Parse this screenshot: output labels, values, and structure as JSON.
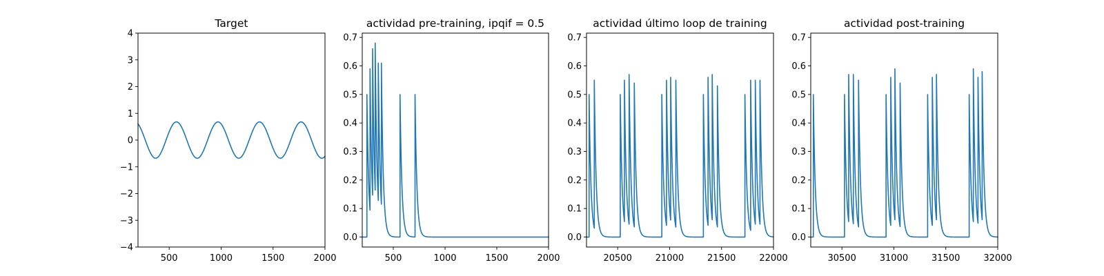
{
  "figure": {
    "background": "#ffffff",
    "line_color": "#1f77b4"
  },
  "chart_data": [
    {
      "type": "line",
      "title": "Target",
      "xlabel": "",
      "ylabel": "",
      "xlim": [
        200,
        2000
      ],
      "ylim": [
        -4,
        4
      ],
      "xticks": [
        500,
        1000,
        1500,
        2000
      ],
      "xtick_labels": [
        "500",
        "1000",
        "1500",
        "2000"
      ],
      "yticks": [
        -4,
        -3,
        -2,
        -1,
        0,
        1,
        2,
        3,
        4
      ],
      "ytick_labels": [
        "−4",
        "−3",
        "−2",
        "−1",
        "0",
        "1",
        "2",
        "3",
        "4"
      ],
      "series": [
        {
          "name": "target",
          "kind": "sine",
          "amplitude": 0.68,
          "period": 400,
          "peak_at": 570,
          "x_range": [
            200,
            2000
          ]
        }
      ]
    },
    {
      "type": "line",
      "title": "actividad pre-training, ipqif = 0.5",
      "xlabel": "",
      "ylabel": "",
      "xlim": [
        200,
        2000
      ],
      "ylim": [
        -0.035,
        0.715
      ],
      "xticks": [
        500,
        1000,
        1500,
        2000
      ],
      "xtick_labels": [
        "500",
        "1000",
        "1500",
        "2000"
      ],
      "yticks": [
        0,
        0.1,
        0.2,
        0.3,
        0.4,
        0.5,
        0.6,
        0.7
      ],
      "ytick_labels": [
        "0.0",
        "0.1",
        "0.2",
        "0.3",
        "0.4",
        "0.5",
        "0.6",
        "0.7"
      ],
      "series": [
        {
          "name": "activity",
          "kind": "spikes",
          "tau": 18,
          "x_range": [
            200,
            2000
          ],
          "spikes": [
            [
              245,
              0.5
            ],
            [
              275,
              0.59
            ],
            [
              300,
              0.66
            ],
            [
              325,
              0.68
            ],
            [
              355,
              0.61
            ],
            [
              385,
              0.61
            ],
            [
              565,
              0.5
            ],
            [
              710,
              0.5
            ]
          ]
        }
      ]
    },
    {
      "type": "line",
      "title": "actividad último loop de training",
      "xlabel": "",
      "ylabel": "",
      "xlim": [
        20200,
        22000
      ],
      "ylim": [
        -0.035,
        0.715
      ],
      "xticks": [
        20500,
        21000,
        21500,
        22000
      ],
      "xtick_labels": [
        "20500",
        "21000",
        "21500",
        "22000"
      ],
      "yticks": [
        0,
        0.1,
        0.2,
        0.3,
        0.4,
        0.5,
        0.6,
        0.7
      ],
      "ytick_labels": [
        "0.0",
        "0.1",
        "0.2",
        "0.3",
        "0.4",
        "0.5",
        "0.6",
        "0.7"
      ],
      "series": [
        {
          "name": "activity",
          "kind": "spikes",
          "tau": 18,
          "x_range": [
            20200,
            22000
          ],
          "spikes": [
            [
              20225,
              0.5
            ],
            [
              20275,
              0.55
            ],
            [
              20525,
              0.5
            ],
            [
              20565,
              0.55
            ],
            [
              20610,
              0.57
            ],
            [
              20660,
              0.54
            ],
            [
              20925,
              0.5
            ],
            [
              20970,
              0.55
            ],
            [
              21010,
              0.56
            ],
            [
              21060,
              0.55
            ],
            [
              21325,
              0.5
            ],
            [
              21370,
              0.56
            ],
            [
              21410,
              0.57
            ],
            [
              21460,
              0.53
            ],
            [
              21725,
              0.5
            ],
            [
              21780,
              0.55
            ],
            [
              21825,
              0.55
            ],
            [
              21870,
              0.55
            ]
          ]
        }
      ]
    },
    {
      "type": "line",
      "title": "actividad post-training",
      "xlabel": "",
      "ylabel": "",
      "xlim": [
        30200,
        32000
      ],
      "ylim": [
        -0.035,
        0.715
      ],
      "xticks": [
        30500,
        31000,
        31500,
        32000
      ],
      "xtick_labels": [
        "30500",
        "31000",
        "31500",
        "32000"
      ],
      "yticks": [
        0,
        0.1,
        0.2,
        0.3,
        0.4,
        0.5,
        0.6,
        0.7
      ],
      "ytick_labels": [
        "0.0",
        "0.1",
        "0.2",
        "0.3",
        "0.4",
        "0.5",
        "0.6",
        "0.7"
      ],
      "series": [
        {
          "name": "activity",
          "kind": "spikes",
          "tau": 18,
          "x_range": [
            30200,
            32000
          ],
          "spikes": [
            [
              30225,
              0.5
            ],
            [
              30525,
              0.5
            ],
            [
              30565,
              0.57
            ],
            [
              30610,
              0.57
            ],
            [
              30660,
              0.55
            ],
            [
              30925,
              0.5
            ],
            [
              30970,
              0.56
            ],
            [
              31010,
              0.59
            ],
            [
              31060,
              0.54
            ],
            [
              31325,
              0.5
            ],
            [
              31370,
              0.56
            ],
            [
              31410,
              0.57
            ],
            [
              31725,
              0.5
            ],
            [
              31765,
              0.59
            ],
            [
              31810,
              0.56
            ],
            [
              31850,
              0.58
            ]
          ]
        }
      ]
    }
  ]
}
